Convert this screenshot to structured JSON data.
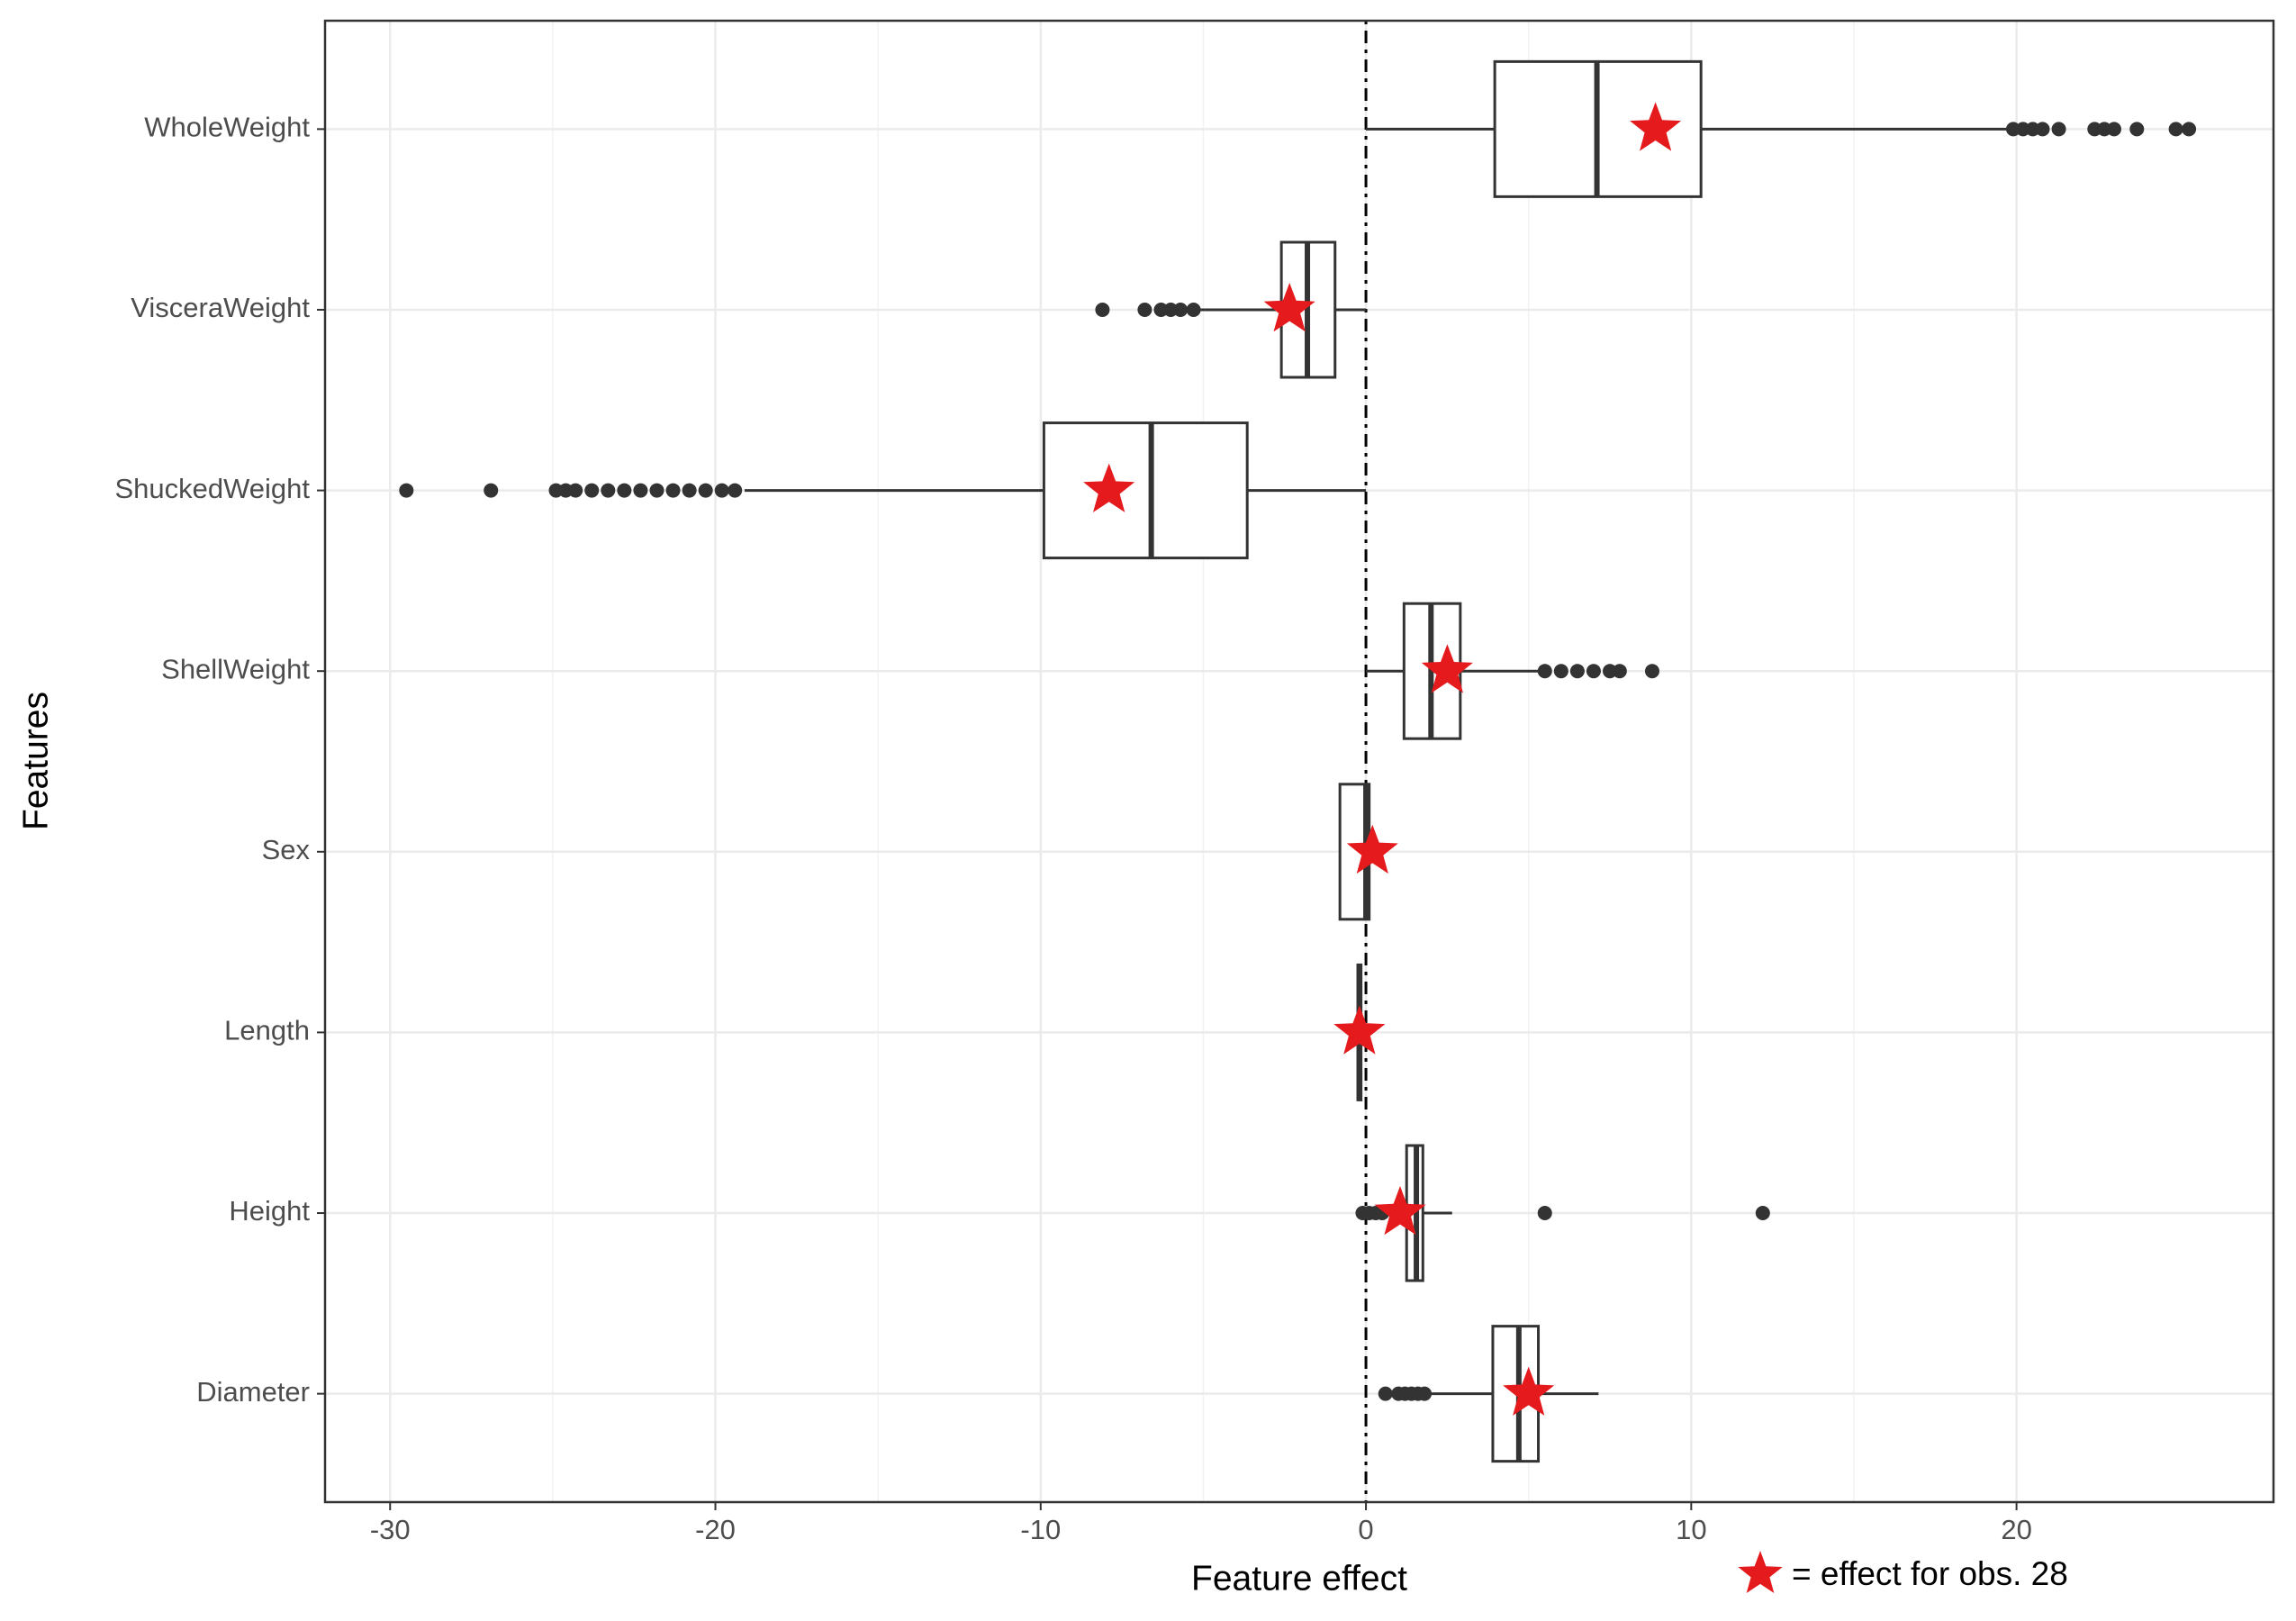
{
  "chart_data": {
    "type": "boxplot",
    "x_label": "Feature effect",
    "y_label": "Features",
    "legend_label": "= effect for obs. 28",
    "categories": [
      "WholeWeight",
      "VisceraWeight",
      "ShuckedWeight",
      "ShellWeight",
      "Sex",
      "Length",
      "Height",
      "Diameter"
    ],
    "boxes": [
      {
        "whisker_low": 0,
        "q1": 3.96,
        "median": 7.1,
        "q3": 10.3,
        "whisker_high": 19.7,
        "outliers": [
          19.9,
          20.2,
          20.5,
          20.8,
          21.3,
          22.4,
          22.7,
          23.0,
          23.7,
          24.9,
          25.3
        ],
        "obs": 8.9
      },
      {
        "whisker_low": -5.1,
        "q1": -2.6,
        "median": -1.8,
        "q3": -0.95,
        "whisker_high": 0,
        "outliers": [
          -8.1,
          -6.8,
          -6.3,
          -6.0,
          -5.7,
          -5.3
        ],
        "obs": -2.35
      },
      {
        "whisker_low": -19.1,
        "q1": -9.9,
        "median": -6.6,
        "q3": -3.65,
        "whisker_high": 0,
        "outliers": [
          -29.5,
          -26.9,
          -24.9,
          -24.6,
          -24.3,
          -23.8,
          -23.3,
          -22.8,
          -22.3,
          -21.8,
          -21.3,
          -20.8,
          -20.3,
          -19.8,
          -19.4
        ],
        "obs": -7.9
      },
      {
        "whisker_low": 0,
        "q1": 1.17,
        "median": 2.0,
        "q3": 2.9,
        "whisker_high": 5.4,
        "outliers": [
          5.5,
          6.0,
          6.5,
          7.0,
          7.5,
          7.8,
          8.8
        ],
        "obs": 2.5
      },
      {
        "whisker_low": -0.8,
        "q1": -0.8,
        "median": 0,
        "q3": 0.1,
        "whisker_high": 0.1,
        "outliers": [],
        "obs": 0.2
      },
      {
        "whisker_low": -0.25,
        "q1": -0.25,
        "median": -0.2,
        "q3": -0.15,
        "whisker_high": -0.15,
        "outliers": [],
        "obs": -0.2
      },
      {
        "whisker_low": 0.6,
        "q1": 1.25,
        "median": 1.55,
        "q3": 1.75,
        "whisker_high": 2.65,
        "outliers": [
          -0.1,
          0.1,
          0.3,
          0.5,
          5.5,
          12.2
        ],
        "obs": 1.05
      },
      {
        "whisker_low": 1.95,
        "q1": 3.9,
        "median": 4.7,
        "q3": 5.3,
        "whisker_high": 7.15,
        "outliers": [
          0.6,
          1.0,
          1.2,
          1.4,
          1.6,
          1.8
        ],
        "obs": 5.0
      }
    ],
    "reference_line": 0,
    "box_color": "#333333",
    "obs_color": "#e41a1c",
    "xlim": [
      -32,
      27.9
    ],
    "xticks": [
      -30,
      -20,
      -10,
      0,
      10,
      20
    ],
    "grid": true
  }
}
